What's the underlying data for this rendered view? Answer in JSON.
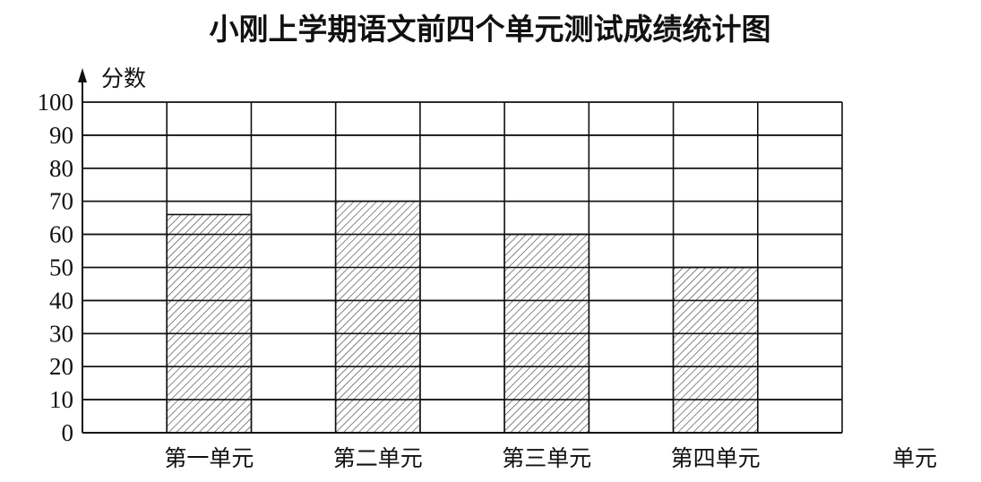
{
  "chart_data": {
    "type": "bar",
    "title": "小刚上学期语文前四个单元测试成绩统计图",
    "ylabel": "分数",
    "xlabel": "单元",
    "categories": [
      "第一单元",
      "第二单元",
      "第三单元",
      "第四单元"
    ],
    "values": [
      66,
      70,
      60,
      50
    ],
    "ylim": [
      0,
      100
    ],
    "yticks": [
      0,
      10,
      20,
      30,
      40,
      50,
      60,
      70,
      80,
      90,
      100
    ],
    "grid": true,
    "bar_fill": "diagonal-hatch",
    "colors": {
      "line": "#111111",
      "hatch": "#444444",
      "background": "#ffffff"
    }
  }
}
